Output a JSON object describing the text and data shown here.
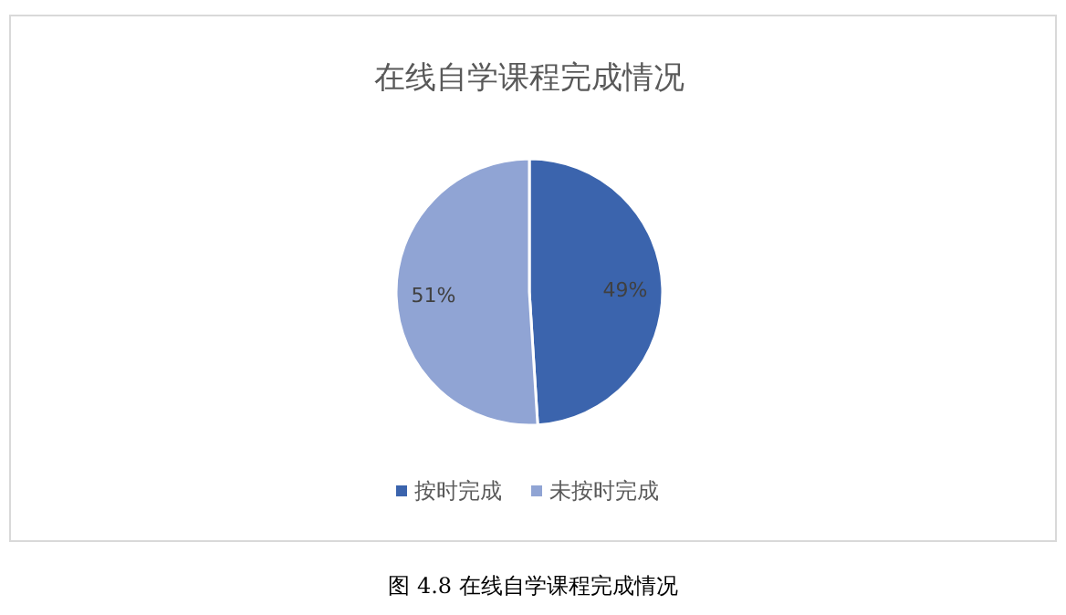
{
  "chart_data": {
    "type": "pie",
    "title": "在线自学课程完成情况",
    "categories": [
      "按时完成",
      "未按时完成"
    ],
    "values": [
      49,
      51
    ],
    "colors": [
      "#3b64ad",
      "#90a4d4"
    ],
    "value_labels": [
      "49%",
      "51%"
    ],
    "legend": "bottom",
    "annotations": [
      "图 4.8 在线自学课程完成情况"
    ]
  }
}
